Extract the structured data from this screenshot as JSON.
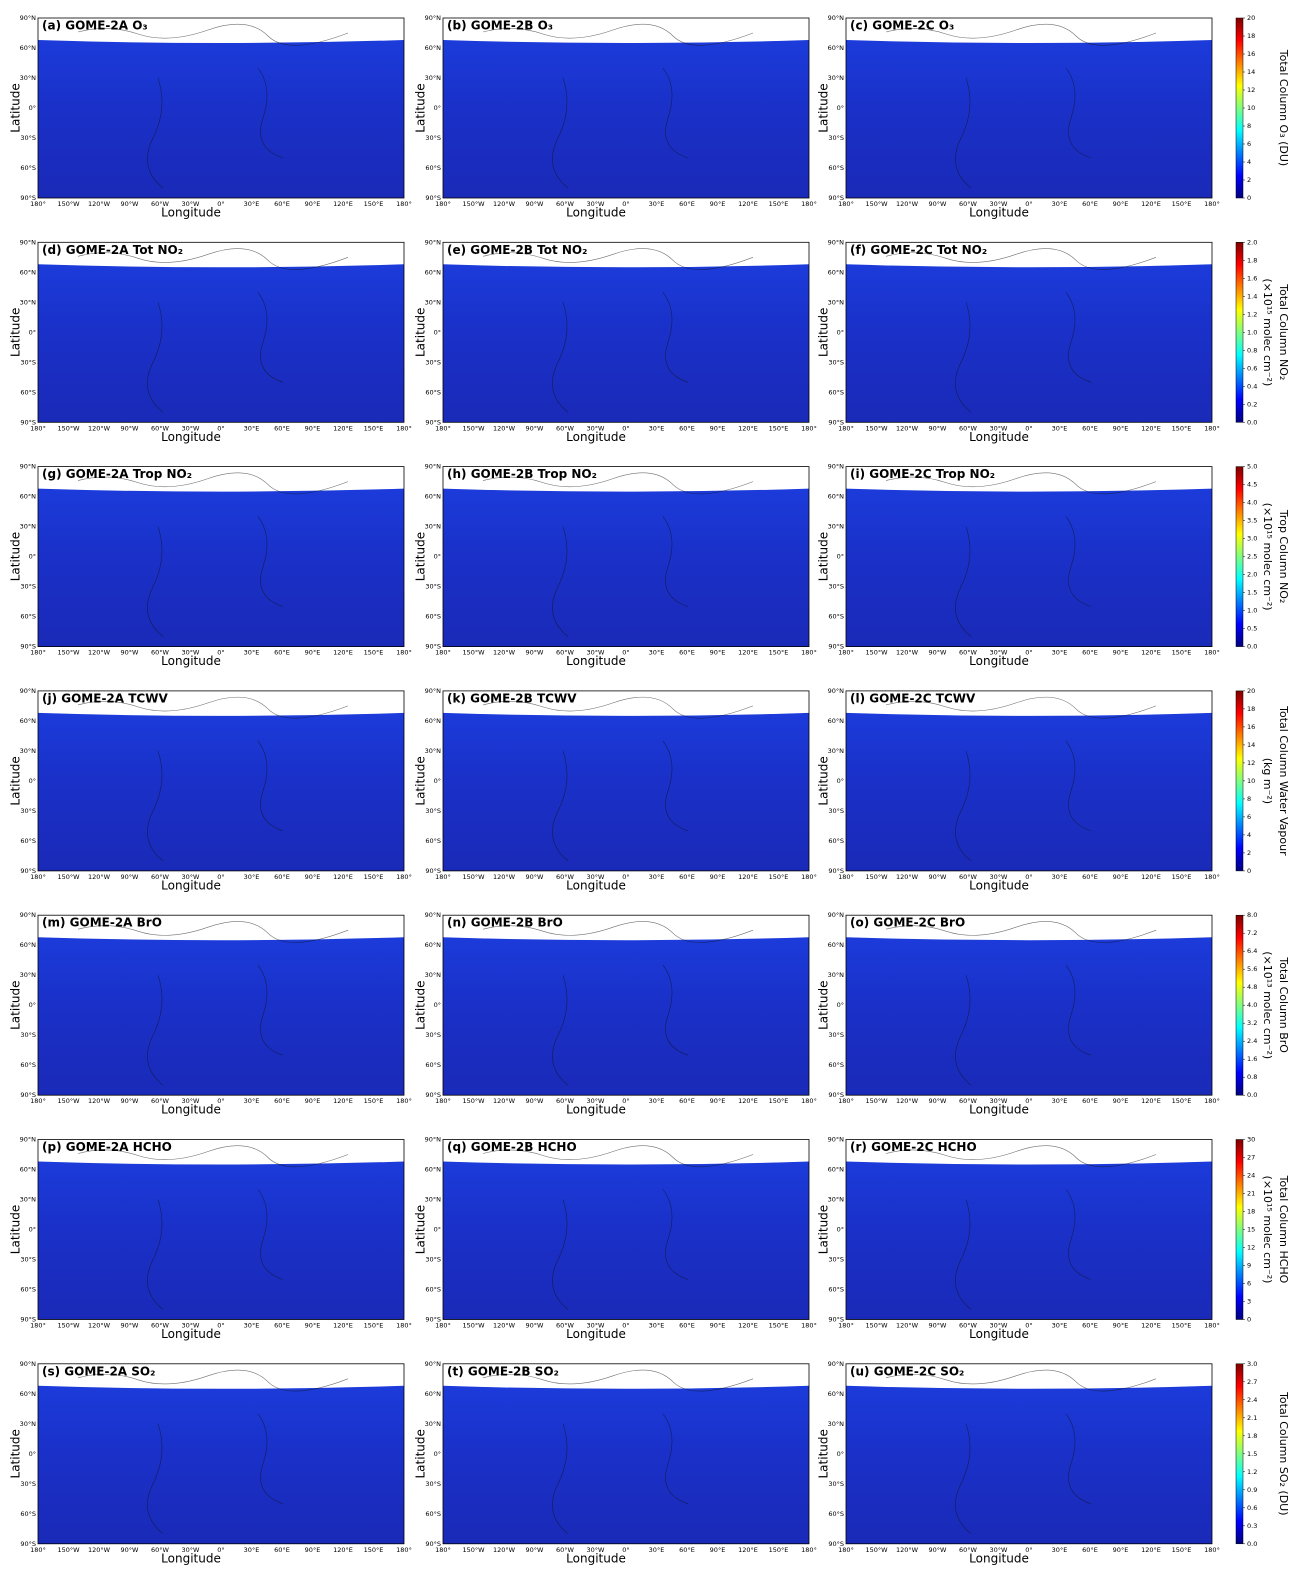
{
  "axes": {
    "xlabel": "Longitude",
    "ylabel": "Latitude",
    "xticks": [
      "180°",
      "150°W",
      "120°W",
      "90°W",
      "60°W",
      "30°W",
      "0°",
      "30°E",
      "60°E",
      "90°E",
      "120°E",
      "150°E",
      "180°"
    ],
    "yticks": [
      "90°N",
      "60°N",
      "30°N",
      "0°",
      "30°S",
      "60°S",
      "90°S"
    ]
  },
  "rows": [
    {
      "panels": [
        "(a) GOME-2A O₃",
        "(b) GOME-2B O₃",
        "(c) GOME-2C O₃"
      ],
      "colorbar": {
        "label": [
          "Total Column O₃ (DU)"
        ],
        "lim": [
          0,
          20
        ],
        "ticks": [
          0,
          2,
          4,
          6,
          8,
          10,
          12,
          14,
          16,
          18,
          20
        ]
      }
    },
    {
      "panels": [
        "(d) GOME-2A Tot NO₂",
        "(e) GOME-2B Tot NO₂",
        "(f) GOME-2C Tot NO₂"
      ],
      "colorbar": {
        "label": [
          "Total Column NO₂",
          "(×10¹⁵ molec cm⁻²)"
        ],
        "lim": [
          0,
          2
        ],
        "ticks": [
          {
            "value": 0,
            "label": "0.0"
          },
          0.2,
          0.4,
          0.6,
          0.8,
          {
            "value": 1,
            "label": "1.0"
          },
          1.2,
          1.4,
          1.6,
          1.8,
          {
            "value": 2,
            "label": "2.0"
          }
        ]
      }
    },
    {
      "panels": [
        "(g) GOME-2A Trop NO₂",
        "(h) GOME-2B Trop NO₂",
        "(i) GOME-2C Trop NO₂"
      ],
      "colorbar": {
        "label": [
          "Trop Column NO₂",
          "(×10¹⁵ molec cm⁻²)"
        ],
        "lim": [
          0,
          5
        ],
        "ticks": [
          {
            "value": 0,
            "label": "0.0"
          },
          0.5,
          {
            "value": 1,
            "label": "1.0"
          },
          1.5,
          {
            "value": 2,
            "label": "2.0"
          },
          2.5,
          {
            "value": 3,
            "label": "3.0"
          },
          3.5,
          {
            "value": 4,
            "label": "4.0"
          },
          4.5,
          {
            "value": 5,
            "label": "5.0"
          }
        ]
      }
    },
    {
      "panels": [
        "(j) GOME-2A TCWV",
        "(k) GOME-2B TCWV",
        "(l) GOME-2C TCWV"
      ],
      "colorbar": {
        "label": [
          "Total Column Water Vapour",
          "(kg m⁻²)"
        ],
        "lim": [
          0,
          20
        ],
        "ticks": [
          0,
          2,
          4,
          6,
          8,
          10,
          12,
          14,
          16,
          18,
          20
        ]
      }
    },
    {
      "panels": [
        "(m) GOME-2A BrO",
        "(n) GOME-2B BrO",
        "(o) GOME-2C BrO"
      ],
      "colorbar": {
        "label": [
          "Total Column BrO",
          "(×10¹³ molec cm⁻²)"
        ],
        "lim": [
          0,
          8
        ],
        "ticks": [
          {
            "value": 0,
            "label": "0.0"
          },
          0.8,
          1.6,
          2.4,
          3.2,
          {
            "value": 4,
            "label": "4.0"
          },
          4.8,
          5.6,
          6.4,
          7.2,
          {
            "value": 8,
            "label": "8.0"
          }
        ]
      }
    },
    {
      "panels": [
        "(p) GOME-2A HCHO",
        "(q) GOME-2B HCHO",
        "(r) GOME-2C HCHO"
      ],
      "colorbar": {
        "label": [
          "Total Column HCHO",
          "(×10¹⁵ molec cm⁻²)"
        ],
        "lim": [
          0,
          30
        ],
        "ticks": [
          0,
          3,
          6,
          9,
          12,
          15,
          18,
          21,
          24,
          27,
          30
        ]
      }
    },
    {
      "panels": [
        "(s) GOME-2A SO₂",
        "(t) GOME-2B SO₂",
        "(u) GOME-2C SO₂"
      ],
      "colorbar": {
        "label": [
          "Total Column SO₂ (DU)"
        ],
        "lim": [
          0,
          3
        ],
        "ticks": [
          {
            "value": 0,
            "label": "0.0"
          },
          0.3,
          0.6,
          0.9,
          1.2,
          1.5,
          1.8,
          2.1,
          2.4,
          2.7,
          {
            "value": 3,
            "label": "3.0"
          }
        ]
      }
    }
  ]
}
